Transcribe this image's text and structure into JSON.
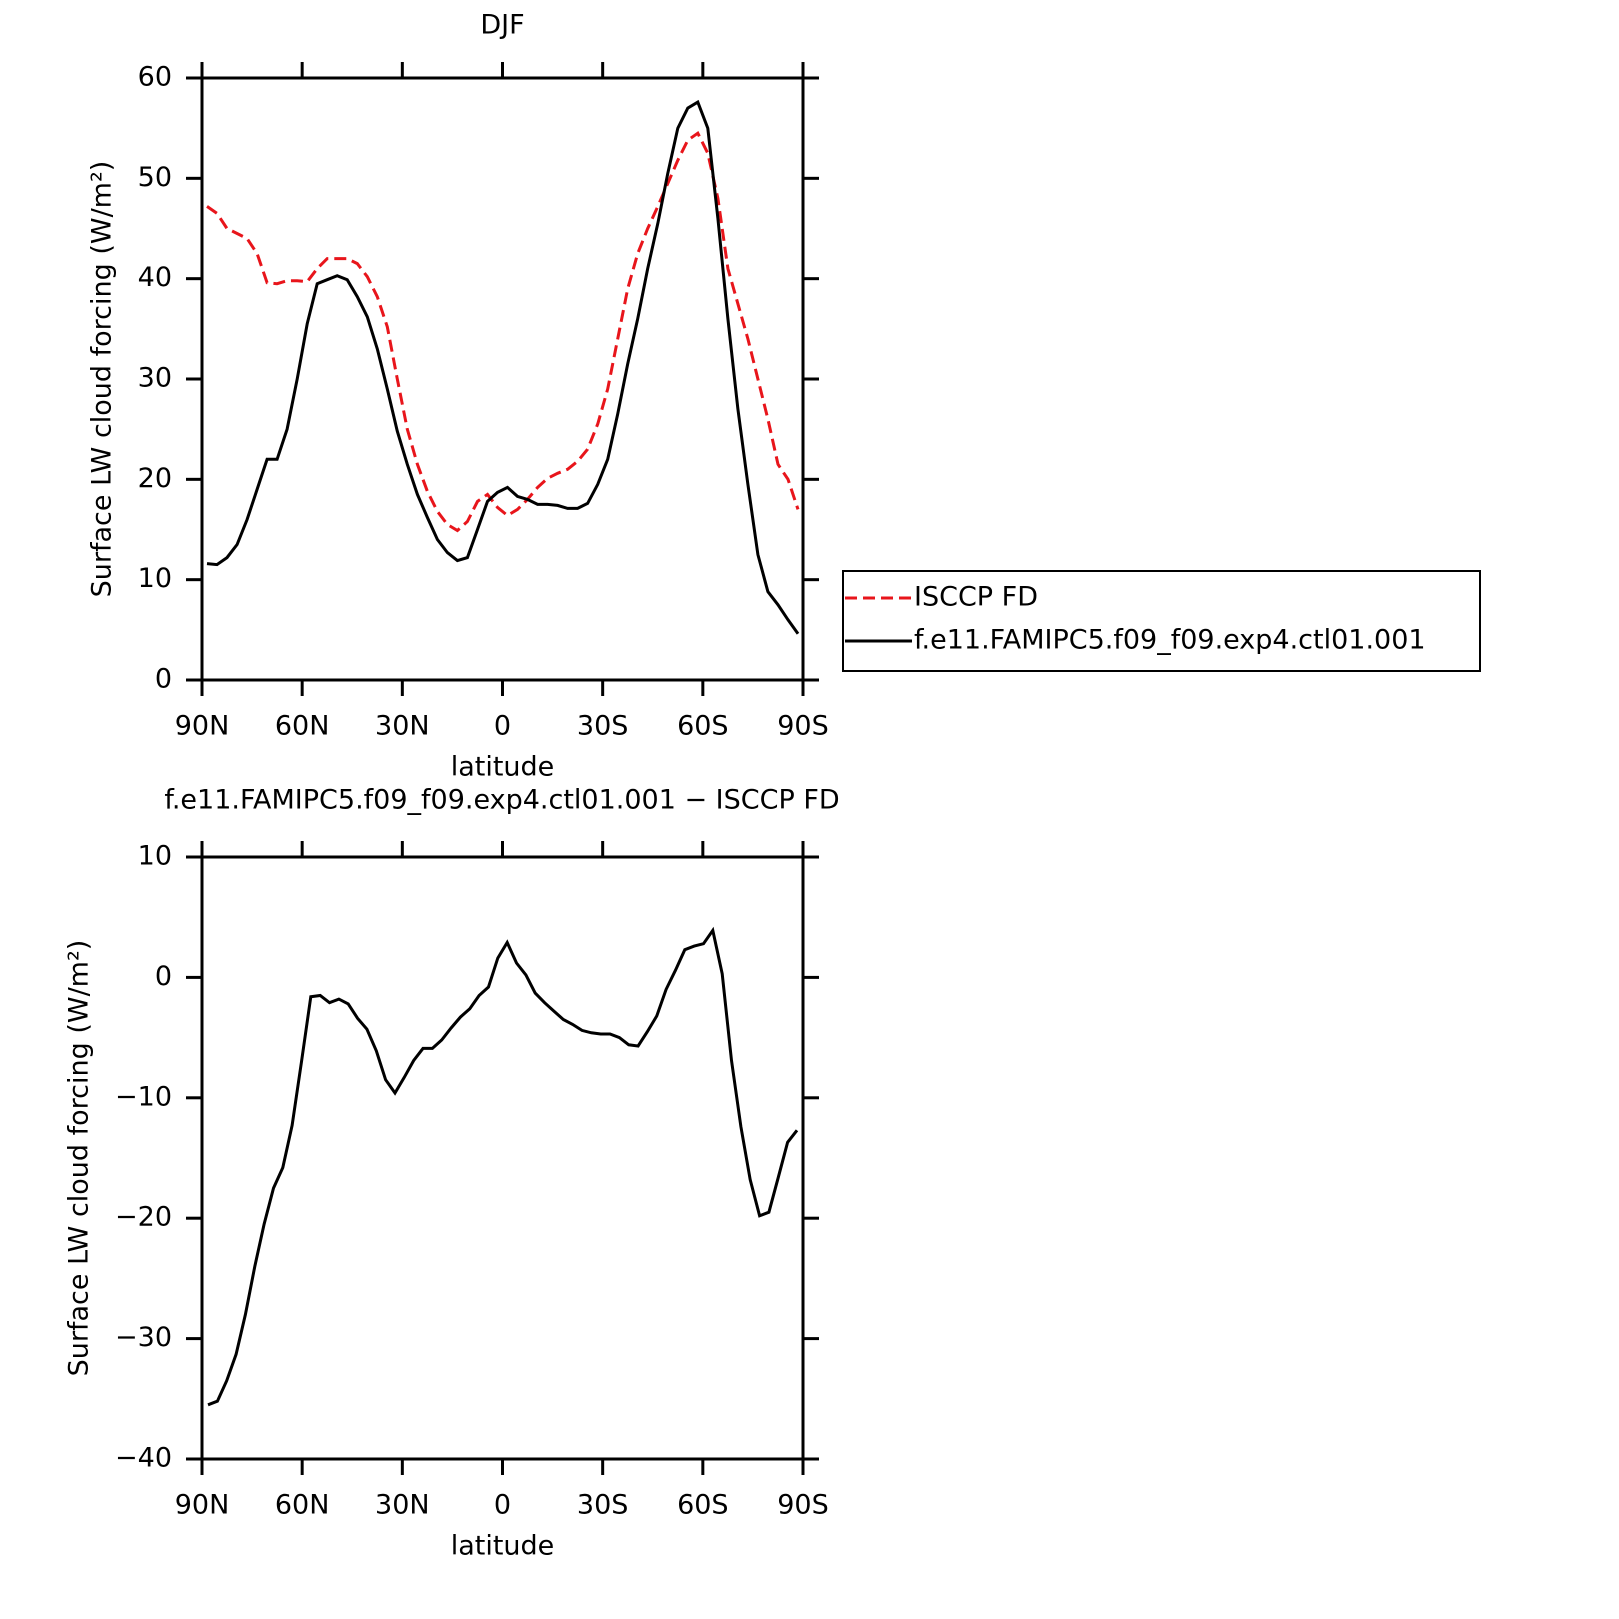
{
  "chart_data": [
    {
      "type": "line",
      "title": "DJF",
      "xlabel": "latitude",
      "ylabel": "Surface LW cloud forcing (W/m²)",
      "x": [
        88.5,
        85.5,
        82.5,
        79.5,
        76.5,
        73.5,
        70.5,
        67.5,
        64.5,
        61.5,
        58.5,
        55.5,
        52.5,
        49.5,
        46.5,
        43.5,
        40.5,
        37.5,
        34.5,
        31.5,
        28.5,
        25.5,
        22.5,
        19.5,
        16.5,
        13.5,
        10.5,
        7.5,
        4.5,
        1.5,
        -1.5,
        -4.5,
        -7.5,
        -10.5,
        -13.5,
        -16.5,
        -19.5,
        -22.5,
        -25.5,
        -28.5,
        -31.5,
        -34.5,
        -37.5,
        -40.5,
        -43.5,
        -46.5,
        -49.5,
        -52.5,
        -55.5,
        -58.5,
        -61.5,
        -64.5,
        -67.5,
        -70.5,
        -73.5,
        -76.5,
        -79.5,
        -82.5,
        -85.5,
        -88.5
      ],
      "series": [
        {
          "name": "ISCCP FD",
          "color": "#e8151b",
          "dash": true,
          "values": [
            47.2,
            46.5,
            45.0,
            44.5,
            44.0,
            42.5,
            39.6,
            39.5,
            39.8,
            39.8,
            39.7,
            41.0,
            42.0,
            42.0,
            42.0,
            41.5,
            40.2,
            38.2,
            35.2,
            30.0,
            25.0,
            21.5,
            18.8,
            16.8,
            15.5,
            14.9,
            15.8,
            17.8,
            18.5,
            17.2,
            16.4,
            17.0,
            18.0,
            19.2,
            20.1,
            20.6,
            21.0,
            21.8,
            23.0,
            25.5,
            29.0,
            34.0,
            39.0,
            42.5,
            45.0,
            47.2,
            49.5,
            51.8,
            53.8,
            54.5,
            52.5,
            48.0,
            41.0,
            37.5,
            34.0,
            30.0,
            26.0,
            21.5,
            20.0,
            17.0
          ]
        },
        {
          "name": "f.e11.FAMIPC5.f09_f09.exp4.ctl01.001",
          "color": "#000000",
          "dash": false,
          "values": [
            11.6,
            11.5,
            12.2,
            13.5,
            16.0,
            19.0,
            22.0,
            22.0,
            25.0,
            30.0,
            35.5,
            39.5,
            39.9,
            40.3,
            39.9,
            38.2,
            36.2,
            33.0,
            29.0,
            24.8,
            21.5,
            18.5,
            16.2,
            14.0,
            12.7,
            11.9,
            12.2,
            15.0,
            17.8,
            18.7,
            19.2,
            18.3,
            18.0,
            17.5,
            17.5,
            17.4,
            17.1,
            17.1,
            17.6,
            19.5,
            22.0,
            26.5,
            31.5,
            36.0,
            41.0,
            45.5,
            50.5,
            55.0,
            57.0,
            57.6,
            55.0,
            46.0,
            36.0,
            27.0,
            19.5,
            12.5,
            8.8,
            7.5,
            6.0,
            4.6
          ]
        }
      ],
      "xlim": [
        90,
        -90
      ],
      "xticks": [
        {
          "value": 90,
          "label": "90N"
        },
        {
          "value": 60,
          "label": "60N"
        },
        {
          "value": 30,
          "label": "30N"
        },
        0,
        {
          "value": -30,
          "label": "30S"
        },
        {
          "value": -60,
          "label": "60S"
        },
        {
          "value": -90,
          "label": "90S"
        }
      ],
      "ylim": [
        0,
        60
      ],
      "yticks": [
        0,
        10,
        20,
        30,
        40,
        50,
        60
      ],
      "legend": "right"
    },
    {
      "type": "line",
      "title": "f.e11.FAMIPC5.f09_f09.exp4.ctl01.001 − ISCCP FD",
      "xlabel": "latitude",
      "ylabel": "Surface LW cloud forcing (W/m²)",
      "x": [
        88.2,
        85.4,
        82.6,
        79.8,
        77,
        74.2,
        71.4,
        68.6,
        65.8,
        63,
        60.2,
        57.4,
        54.6,
        51.8,
        49,
        46.2,
        43.4,
        40.6,
        37.8,
        35,
        32.2,
        29.4,
        26.6,
        23.8,
        21,
        18.2,
        15.4,
        12.6,
        9.8,
        7,
        4.2,
        1.4,
        -1.4,
        -4.2,
        -7,
        -9.8,
        -12.6,
        -15.4,
        -18.2,
        -21,
        -23.8,
        -26.6,
        -29.4,
        -32.2,
        -35,
        -37.8,
        -40.6,
        -43.4,
        -46.2,
        -49,
        -51.8,
        -54.6,
        -57.4,
        -60.2,
        -63,
        -65.8,
        -68.6,
        -71.4,
        -74.2,
        -77,
        -79.8,
        -82.6,
        -85.4,
        -88.2
      ],
      "color": "#000000",
      "values": [
        -35.5,
        -35.2,
        -33.5,
        -31.3,
        -28,
        -24,
        -20.5,
        -17.5,
        -15.8,
        -12.3,
        -7,
        -1.6,
        -1.5,
        -2.1,
        -1.8,
        -2.2,
        -3.4,
        -4.3,
        -6.1,
        -8.5,
        -9.6,
        -8.3,
        -6.9,
        -5.9,
        -5.9,
        -5.2,
        -4.2,
        -3.3,
        -2.6,
        -1.5,
        -0.8,
        1.6,
        2.9,
        1.2,
        0.2,
        -1.3,
        -2.1,
        -2.8,
        -3.5,
        -3.9,
        -4.4,
        -4.6,
        -4.7,
        -4.7,
        -5,
        -5.6,
        -5.7,
        -4.5,
        -3.2,
        -1,
        0.6,
        2.3,
        2.6,
        2.8,
        3.9,
        0.3,
        -6.9,
        -12.4,
        -16.8,
        -19.8,
        -19.5,
        -16.6,
        -13.7,
        -12.7
      ],
      "xlim": [
        90,
        -90
      ],
      "xticks": [
        {
          "value": 90,
          "label": "90N"
        },
        {
          "value": 60,
          "label": "60N"
        },
        {
          "value": 30,
          "label": "30N"
        },
        0,
        {
          "value": -30,
          "label": "30S"
        },
        {
          "value": -60,
          "label": "60S"
        },
        {
          "value": -90,
          "label": "90S"
        }
      ],
      "ylim": [
        -40,
        10
      ],
      "yticks": [
        {
          "value": -40,
          "label": "−40"
        },
        {
          "value": -30,
          "label": "−30"
        },
        {
          "value": -20,
          "label": "−20"
        },
        {
          "value": -10,
          "label": "−10"
        },
        0,
        10
      ]
    }
  ]
}
